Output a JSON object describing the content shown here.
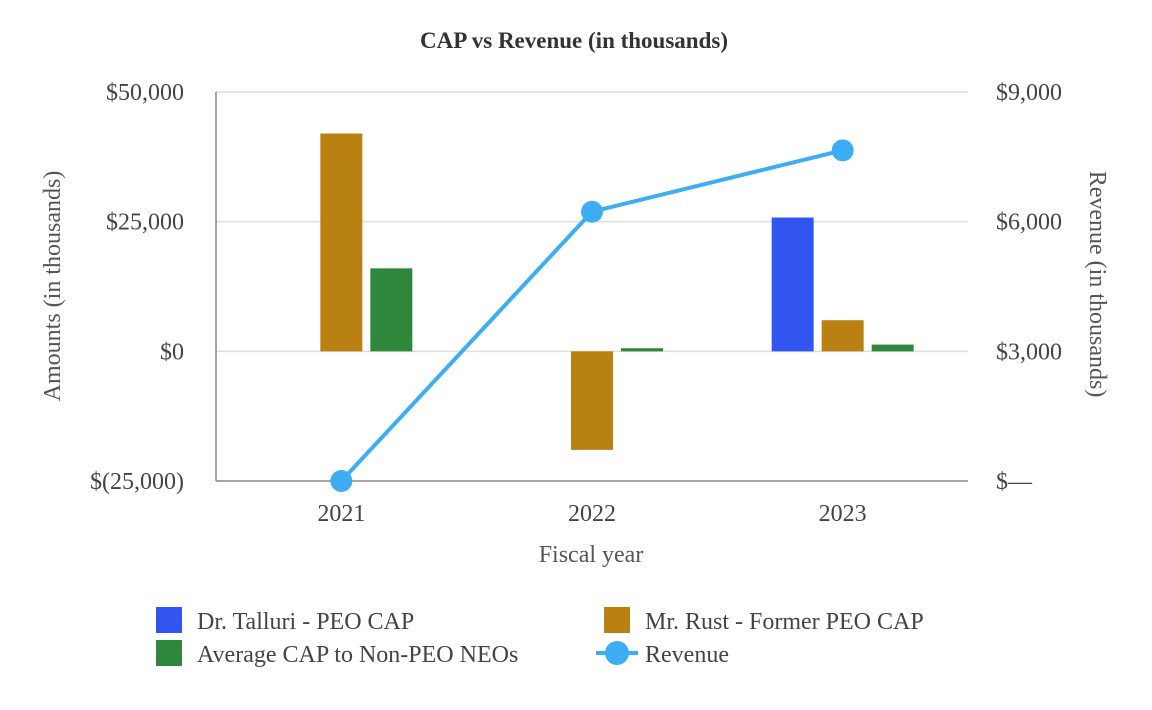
{
  "chart_data": {
    "type": "bar+line",
    "title": "CAP vs Revenue (in thousands)",
    "xlabel": "Fiscal year",
    "ylabel_left": "Amounts (in thousands)",
    "ylabel_right": "Revenue (in thousands)",
    "categories": [
      "2021",
      "2022",
      "2023"
    ],
    "ylim_left": [
      -25000,
      50000
    ],
    "ylim_right": [
      0,
      9000
    ],
    "left_ticks": [
      {
        "value": 50000,
        "label": "$50,000"
      },
      {
        "value": 25000,
        "label": "$25,000"
      },
      {
        "value": 0,
        "label": "$0"
      },
      {
        "value": -25000,
        "label": "$(25,000)"
      }
    ],
    "right_ticks": [
      {
        "value": 9000,
        "label": "$9,000"
      },
      {
        "value": 6000,
        "label": "$6,000"
      },
      {
        "value": 3000,
        "label": "$3,000"
      },
      {
        "value": 0,
        "label": "$—"
      }
    ],
    "grid": true,
    "legend_position": "bottom",
    "bar_series": [
      {
        "name": "Dr. Talluri - PEO CAP",
        "color": "#3254F0",
        "values": [
          null,
          null,
          25800
        ]
      },
      {
        "name": "Mr. Rust - Former PEO CAP",
        "color": "#B98112",
        "values": [
          42000,
          -19000,
          6000
        ]
      },
      {
        "name": "Average CAP to Non-PEO NEOs",
        "color": "#2E873A",
        "values": [
          16000,
          600,
          1300
        ]
      }
    ],
    "line_series": {
      "name": "Revenue",
      "color": "#3EAEF4",
      "axis": "right",
      "values": [
        0,
        6230,
        7650
      ]
    }
  }
}
